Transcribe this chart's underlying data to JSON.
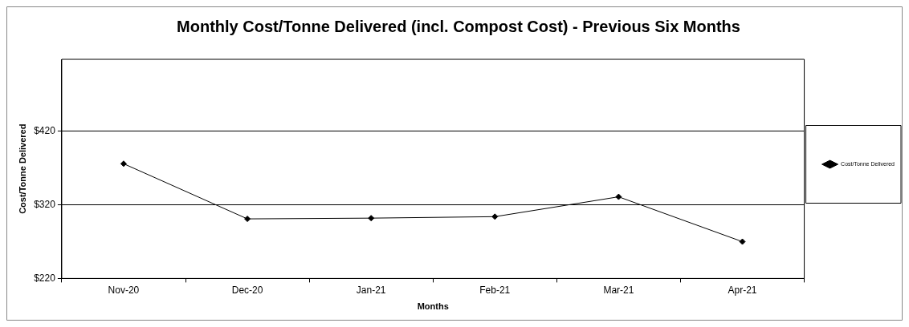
{
  "chart_data": {
    "type": "line",
    "title": "Monthly Cost/Tonne Delivered (incl. Compost Cost) - Previous Six Months",
    "xlabel": "Months",
    "ylabel": "Cost/Tonne Delivered",
    "categories": [
      "Nov-20",
      "Dec-20",
      "Jan-21",
      "Feb-21",
      "Mar-21",
      "Apr-21"
    ],
    "series": [
      {
        "name": "Cost/Tonne Delivered",
        "color": "#000000",
        "values": [
          376,
          301,
          302,
          304,
          331,
          270
        ]
      }
    ],
    "ylim": [
      220,
      518
    ],
    "yticks": [
      {
        "value": 220,
        "label": "$220"
      },
      {
        "value": 320,
        "label": "$320"
      },
      {
        "value": 420,
        "label": "$420"
      }
    ],
    "grid": "y",
    "legend": "right",
    "marker": "diamond",
    "line_style": "solid"
  }
}
